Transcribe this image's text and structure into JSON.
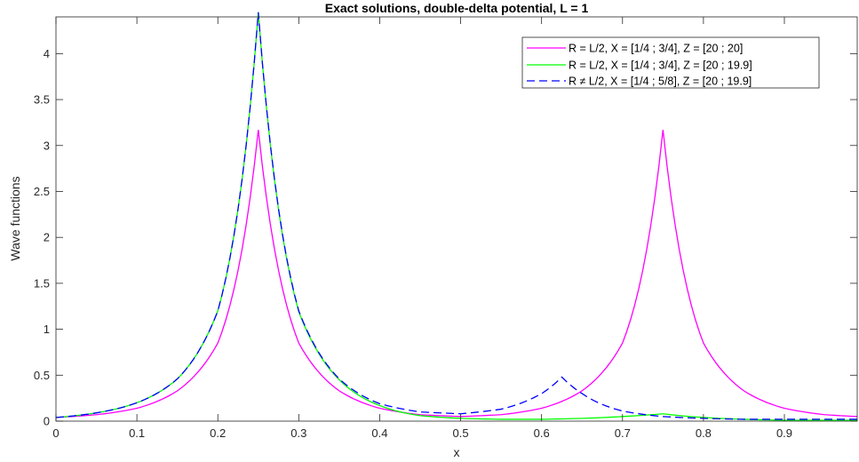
{
  "chart_data": {
    "type": "line",
    "title": "Exact solutions, double-delta potential, L = 1",
    "xlabel": "x",
    "ylabel": "Wave functions",
    "xlim": [
      0,
      0.99
    ],
    "ylim": [
      0,
      4.4
    ],
    "xticks": [
      0,
      0.1,
      0.2,
      0.3,
      0.4,
      0.5,
      0.6,
      0.7,
      0.8,
      0.9
    ],
    "xtick_labels": [
      "0",
      "0.1",
      "0.2",
      "0.3",
      "0.4",
      "0.5",
      "0.6",
      "0.7",
      "0.8",
      "0.9"
    ],
    "yticks": [
      0,
      0.5,
      1,
      1.5,
      2,
      2.5,
      3,
      3.5,
      4
    ],
    "ytick_labels": [
      "0",
      "0.5",
      "1",
      "1.5",
      "2",
      "2.5",
      "3",
      "3.5",
      "4"
    ],
    "grid": false,
    "legend_position": "top-right",
    "series": [
      {
        "name": "R = L/2, X = [1/4 ; 3/4], Z = [20 ; 20]",
        "color": "#ff00ff",
        "style": "solid",
        "x": [
          0,
          0.05,
          0.1,
          0.15,
          0.2,
          0.25,
          0.3,
          0.35,
          0.4,
          0.45,
          0.5,
          0.55,
          0.6,
          0.65,
          0.7,
          0.75,
          0.8,
          0.85,
          0.9,
          0.95,
          0.99
        ],
        "y": [
          0.04,
          0.07,
          0.14,
          0.33,
          0.85,
          3.17,
          0.85,
          0.33,
          0.14,
          0.07,
          0.05,
          0.07,
          0.14,
          0.33,
          0.85,
          3.17,
          0.85,
          0.33,
          0.14,
          0.07,
          0.05
        ]
      },
      {
        "name": "R = L/2, X = [1/4 ; 3/4], Z = [20 ; 19.9]",
        "color": "#00ff00",
        "style": "solid",
        "x": [
          0,
          0.05,
          0.1,
          0.15,
          0.2,
          0.25,
          0.3,
          0.35,
          0.4,
          0.45,
          0.5,
          0.55,
          0.6,
          0.65,
          0.7,
          0.75,
          0.8,
          0.85,
          0.9,
          0.95,
          0.99
        ],
        "y": [
          0.04,
          0.09,
          0.2,
          0.46,
          1.2,
          4.45,
          1.19,
          0.45,
          0.17,
          0.06,
          0.03,
          0.02,
          0.02,
          0.03,
          0.05,
          0.08,
          0.04,
          0.02,
          0.01,
          0.01,
          0.01
        ]
      },
      {
        "name": "R ≠ L/2, X = [1/4 ; 5/8], Z = [20 ; 19.9]",
        "color": "#0000ff",
        "style": "dashed",
        "x": [
          0,
          0.05,
          0.1,
          0.15,
          0.2,
          0.25,
          0.3,
          0.35,
          0.4,
          0.45,
          0.5,
          0.55,
          0.6,
          0.625,
          0.65,
          0.7,
          0.75,
          0.8,
          0.85,
          0.9,
          0.95,
          0.99
        ],
        "y": [
          0.04,
          0.09,
          0.2,
          0.46,
          1.2,
          4.45,
          1.2,
          0.46,
          0.19,
          0.1,
          0.08,
          0.13,
          0.3,
          0.48,
          0.3,
          0.11,
          0.05,
          0.03,
          0.02,
          0.02,
          0.02,
          0.02
        ]
      }
    ]
  }
}
